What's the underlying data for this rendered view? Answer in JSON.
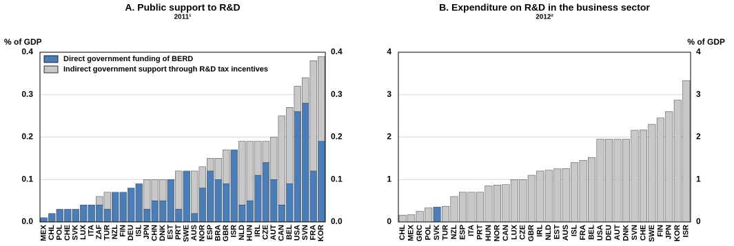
{
  "chart_data": [
    {
      "type": "bar",
      "stacked": true,
      "title": "A. Public support to R&D",
      "subtitle": "2011¹",
      "ylabel": "% of GDP",
      "ylim": [
        0,
        0.4
      ],
      "yticks": [
        {
          "value": 0,
          "label": "0.0"
        },
        0.1,
        0.2,
        0.3,
        0.4
      ],
      "grid": true,
      "legend": "top-left",
      "right_axis": true,
      "categories": [
        "MEX",
        "CHL",
        "POL",
        "CHE",
        "SVK",
        "LUX",
        "ITA",
        "ZAF",
        "TUR",
        "NZL",
        "FIN",
        "DEU",
        "ISL",
        "JPN",
        "CHN",
        "DNK",
        "EST",
        "PRT",
        "SWE",
        "AUS",
        "NOR",
        "ESP",
        "BRA",
        "GBR",
        "ISR",
        "NLD",
        "HUN",
        "IRL",
        "CZE",
        "AUT",
        "CAN",
        "BEL",
        "USA",
        "SVN",
        "FRA",
        "KOR"
      ],
      "series": [
        {
          "name": "Direct government funding of BERD",
          "color": "#4a7ebb",
          "values": [
            0.01,
            0.02,
            0.03,
            0.03,
            0.03,
            0.04,
            0.04,
            0.04,
            0.03,
            0.07,
            0.07,
            0.08,
            0.09,
            0.03,
            0.05,
            0.05,
            0.1,
            0.03,
            0.12,
            0.02,
            0.08,
            0.12,
            0.1,
            0.09,
            0.17,
            0.04,
            0.05,
            0.11,
            0.14,
            0.1,
            0.04,
            0.09,
            0.26,
            0.28,
            0.12,
            0.19
          ]
        },
        {
          "name": "Indirect government support through R&D tax incentives",
          "color": "#c8c8c8",
          "values": [
            0,
            0,
            0,
            0,
            0,
            0,
            0,
            0.02,
            0.04,
            0,
            0,
            0,
            0,
            0.07,
            0.05,
            0.05,
            0,
            0.09,
            0,
            0.1,
            0.05,
            0.03,
            0.05,
            0.08,
            0,
            0.15,
            0.14,
            0.08,
            0.05,
            0.1,
            0.21,
            0.18,
            0.06,
            0.06,
            0.26,
            0.2
          ]
        }
      ]
    },
    {
      "type": "bar",
      "stacked": false,
      "title": "B. Expenditure on R&D in the business sector",
      "subtitle": "2012²",
      "ylabel": "% of GDP",
      "ylim": [
        0,
        4
      ],
      "yticks": [
        0,
        1,
        2,
        3,
        4
      ],
      "grid": true,
      "right_axis": true,
      "categories": [
        "CHL",
        "MEX",
        "GRC",
        "POL",
        "SVK",
        "TUR",
        "NZL",
        "ESP",
        "ITA",
        "PRT",
        "HUN",
        "NOR",
        "CAN",
        "LUX",
        "CZE",
        "GBR",
        "IRL",
        "NLD",
        "EST",
        "AUS",
        "ISL",
        "FRA",
        "BEL",
        "USA",
        "DEU",
        "AUT",
        "DNK",
        "SVN",
        "CHE",
        "SWE",
        "FIN",
        "JPN",
        "KOR",
        "ISR"
      ],
      "values": [
        0.16,
        0.17,
        0.25,
        0.33,
        0.35,
        0.37,
        0.6,
        0.7,
        0.7,
        0.7,
        0.85,
        0.87,
        0.88,
        1.0,
        1.0,
        1.1,
        1.2,
        1.22,
        1.25,
        1.26,
        1.4,
        1.45,
        1.52,
        1.95,
        1.95,
        1.95,
        1.95,
        2.16,
        2.17,
        2.3,
        2.45,
        2.6,
        2.87,
        3.33
      ],
      "bar_colors": [
        "#c8c8c8",
        "#c8c8c8",
        "#c8c8c8",
        "#c8c8c8",
        "#4a7ebb",
        "#c8c8c8",
        "#c8c8c8",
        "#c8c8c8",
        "#c8c8c8",
        "#c8c8c8",
        "#c8c8c8",
        "#c8c8c8",
        "#c8c8c8",
        "#c8c8c8",
        "#c8c8c8",
        "#c8c8c8",
        "#c8c8c8",
        "#c8c8c8",
        "#c8c8c8",
        "#c8c8c8",
        "#c8c8c8",
        "#c8c8c8",
        "#c8c8c8",
        "#c8c8c8",
        "#c8c8c8",
        "#c8c8c8",
        "#c8c8c8",
        "#c8c8c8",
        "#c8c8c8",
        "#c8c8c8",
        "#c8c8c8",
        "#c8c8c8",
        "#c8c8c8",
        "#c8c8c8"
      ]
    }
  ]
}
